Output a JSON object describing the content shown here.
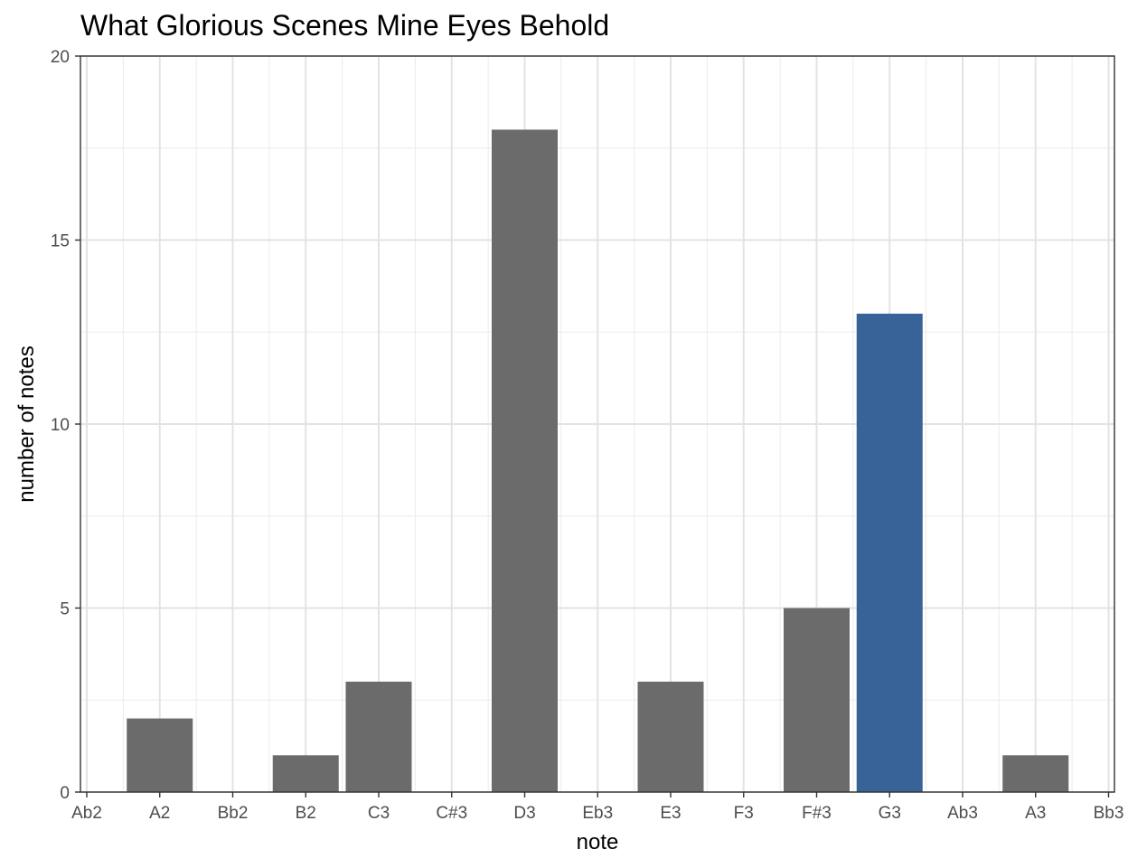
{
  "chart_data": {
    "type": "bar",
    "title": "What Glorious Scenes Mine Eyes Behold",
    "xlabel": "note",
    "ylabel": "number of notes",
    "categories": [
      "Ab2",
      "A2",
      "Bb2",
      "B2",
      "C3",
      "C#3",
      "D3",
      "Eb3",
      "E3",
      "F3",
      "F#3",
      "G3",
      "Ab3",
      "A3",
      "Bb3"
    ],
    "values": [
      0,
      2,
      0,
      1,
      3,
      0,
      18,
      0,
      3,
      0,
      5,
      13,
      0,
      1,
      0
    ],
    "highlight_category": "G3",
    "ylim": [
      0,
      20
    ],
    "yticks": [
      "0",
      "5",
      "10",
      "15",
      "20"
    ],
    "grid": true,
    "colors": {
      "bar": "#6b6b6b",
      "highlight": "#376398"
    }
  }
}
